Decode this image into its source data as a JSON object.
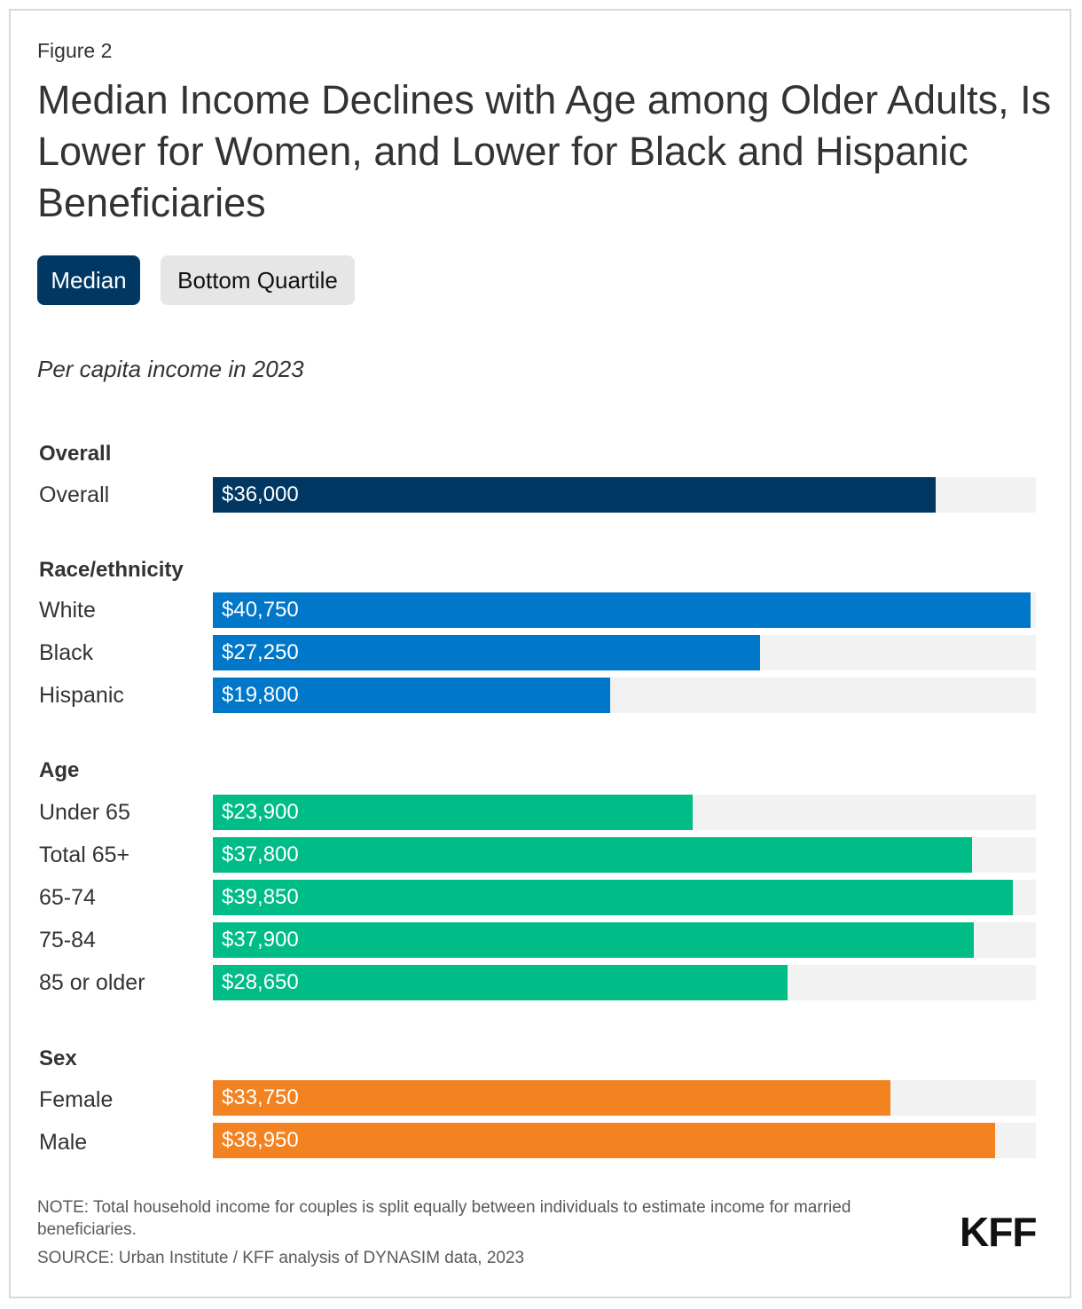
{
  "figure_label": "Figure 2",
  "title": "Median Income Declines with Age among Older Adults, Is Lower for Women, and Lower for Black and Hispanic Beneficiaries",
  "toggle": {
    "median_label": "Median",
    "bottom_quartile_label": "Bottom Quartile",
    "selected": "Median"
  },
  "colors": {
    "median_button": "#003863",
    "overall": "#003863",
    "race": "#0077c8",
    "age": "#00bc87",
    "sex": "#f38220",
    "track": "#f2f2f2"
  },
  "chart_data": {
    "type": "bar",
    "orientation": "horizontal",
    "subtitle": "Per capita income in 2023",
    "xlim": [
      0,
      41000
    ],
    "groups": [
      {
        "name": "Overall",
        "color_key": "overall",
        "rows": [
          {
            "label": "Overall",
            "value": 36000,
            "value_label": "$36,000"
          }
        ]
      },
      {
        "name": "Race/ethnicity",
        "color_key": "race",
        "rows": [
          {
            "label": "White",
            "value": 40750,
            "value_label": "$40,750"
          },
          {
            "label": "Black",
            "value": 27250,
            "value_label": "$27,250"
          },
          {
            "label": "Hispanic",
            "value": 19800,
            "value_label": "$19,800"
          }
        ]
      },
      {
        "name": "Age",
        "color_key": "age",
        "rows": [
          {
            "label": "Under 65",
            "value": 23900,
            "value_label": "$23,900"
          },
          {
            "label": "Total 65+",
            "value": 37800,
            "value_label": "$37,800"
          },
          {
            "label": "65-74",
            "value": 39850,
            "value_label": "$39,850"
          },
          {
            "label": "75-84",
            "value": 37900,
            "value_label": "$37,900"
          },
          {
            "label": "85 or older",
            "value": 28650,
            "value_label": "$28,650"
          }
        ]
      },
      {
        "name": "Sex",
        "color_key": "sex",
        "rows": [
          {
            "label": "Female",
            "value": 33750,
            "value_label": "$33,750"
          },
          {
            "label": "Male",
            "value": 38950,
            "value_label": "$38,950"
          }
        ]
      }
    ]
  },
  "footer": {
    "note": "NOTE: Total household income for couples is split equally between individuals to estimate income for married beneficiaries.",
    "source": "SOURCE: Urban Institute / KFF analysis of DYNASIM data, 2023",
    "logo": "KFF"
  }
}
